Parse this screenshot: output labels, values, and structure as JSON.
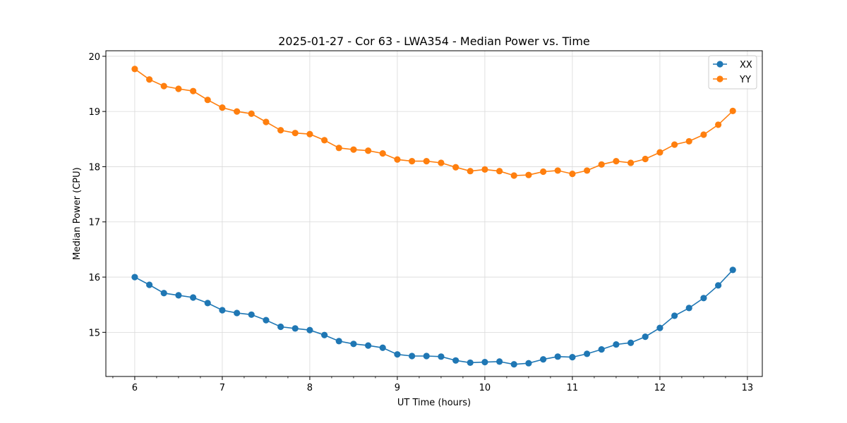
{
  "chart_data": {
    "type": "line",
    "title": "2025-01-27 - Cor 63 - LWA354 - Median Power vs. Time",
    "xlabel": "UT Time (hours)",
    "ylabel": "Median Power (CPU)",
    "xlim": [
      5.67,
      13.17
    ],
    "ylim": [
      14.2,
      20.1
    ],
    "xticks": [
      "6",
      "7",
      "8",
      "9",
      "10",
      "11",
      "12",
      "13"
    ],
    "yticks": [
      "15",
      "16",
      "17",
      "18",
      "19",
      "20"
    ],
    "grid": true,
    "legend_position": "top-right",
    "x": [
      6.0,
      6.167,
      6.333,
      6.5,
      6.667,
      6.833,
      7.0,
      7.167,
      7.333,
      7.5,
      7.667,
      7.833,
      8.0,
      8.167,
      8.333,
      8.5,
      8.667,
      8.833,
      9.0,
      9.167,
      9.333,
      9.5,
      9.667,
      9.833,
      10.0,
      10.167,
      10.333,
      10.5,
      10.667,
      10.833,
      11.0,
      11.167,
      11.333,
      11.5,
      11.667,
      11.833,
      12.0,
      12.167,
      12.333,
      12.5,
      12.667,
      12.833
    ],
    "series": [
      {
        "name": "XX",
        "color": "#1f77b4",
        "values": [
          16.0,
          15.86,
          15.71,
          15.67,
          15.63,
          15.53,
          15.4,
          15.35,
          15.32,
          15.22,
          15.1,
          15.07,
          15.04,
          14.95,
          14.84,
          14.79,
          14.76,
          14.72,
          14.6,
          14.57,
          14.57,
          14.56,
          14.49,
          14.45,
          14.46,
          14.47,
          14.42,
          14.44,
          14.51,
          14.56,
          14.55,
          14.61,
          14.69,
          14.78,
          14.81,
          14.92,
          15.08,
          15.3,
          15.44,
          15.62,
          15.85,
          16.13
        ]
      },
      {
        "name": "YY",
        "color": "#ff7f0e",
        "values": [
          19.77,
          19.58,
          19.46,
          19.41,
          19.37,
          19.21,
          19.07,
          19.0,
          18.96,
          18.81,
          18.66,
          18.61,
          18.59,
          18.48,
          18.34,
          18.31,
          18.29,
          18.24,
          18.13,
          18.1,
          18.1,
          18.07,
          17.99,
          17.92,
          17.95,
          17.92,
          17.84,
          17.85,
          17.91,
          17.93,
          17.87,
          17.93,
          18.04,
          18.1,
          18.07,
          18.14,
          18.26,
          18.4,
          18.46,
          18.58,
          18.76,
          19.01
        ]
      }
    ]
  }
}
